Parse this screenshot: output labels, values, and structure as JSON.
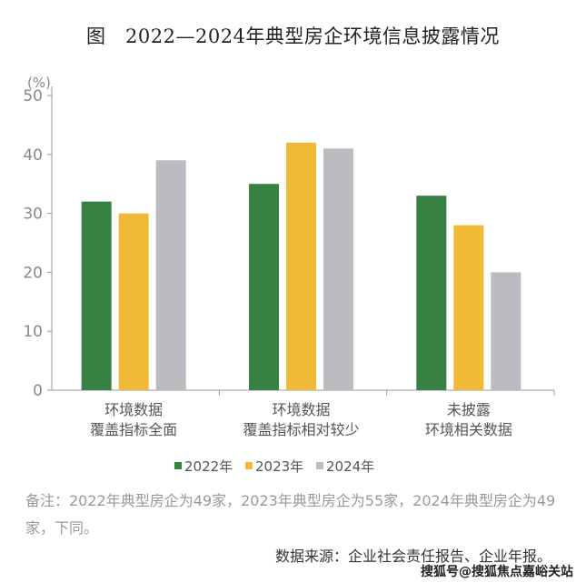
{
  "title": "图　2022—2024年典型房企环境信息披露情况",
  "chart_data": {
    "type": "bar",
    "title": "图　2022—2024年典型房企环境信息披露情况",
    "ylabel": "(%)",
    "ylim": [
      0,
      50
    ],
    "yticks": [
      0,
      10,
      20,
      30,
      40,
      50
    ],
    "categories": [
      [
        "环境数据",
        "覆盖指标全面"
      ],
      [
        "环境数据",
        "覆盖指标相对较少"
      ],
      [
        "未披露",
        "环境相关数据"
      ]
    ],
    "series": [
      {
        "name": "2022年",
        "color": "#378143",
        "values": [
          32,
          35,
          33
        ]
      },
      {
        "name": "2023年",
        "color": "#F0BA36",
        "values": [
          30,
          42,
          28
        ]
      },
      {
        "name": "2024年",
        "color": "#BBBCBF",
        "values": [
          39,
          41,
          20
        ]
      }
    ],
    "grid": false,
    "legend": "bottom"
  },
  "note": "备注：2022年典型房企为49家，2023年典型房企为55家，2024年典型房企为49家，下同。",
  "source": "数据来源：企业社会责任报告、企业年报。",
  "watermark": "搜狐号@搜狐焦点嘉峪关站"
}
